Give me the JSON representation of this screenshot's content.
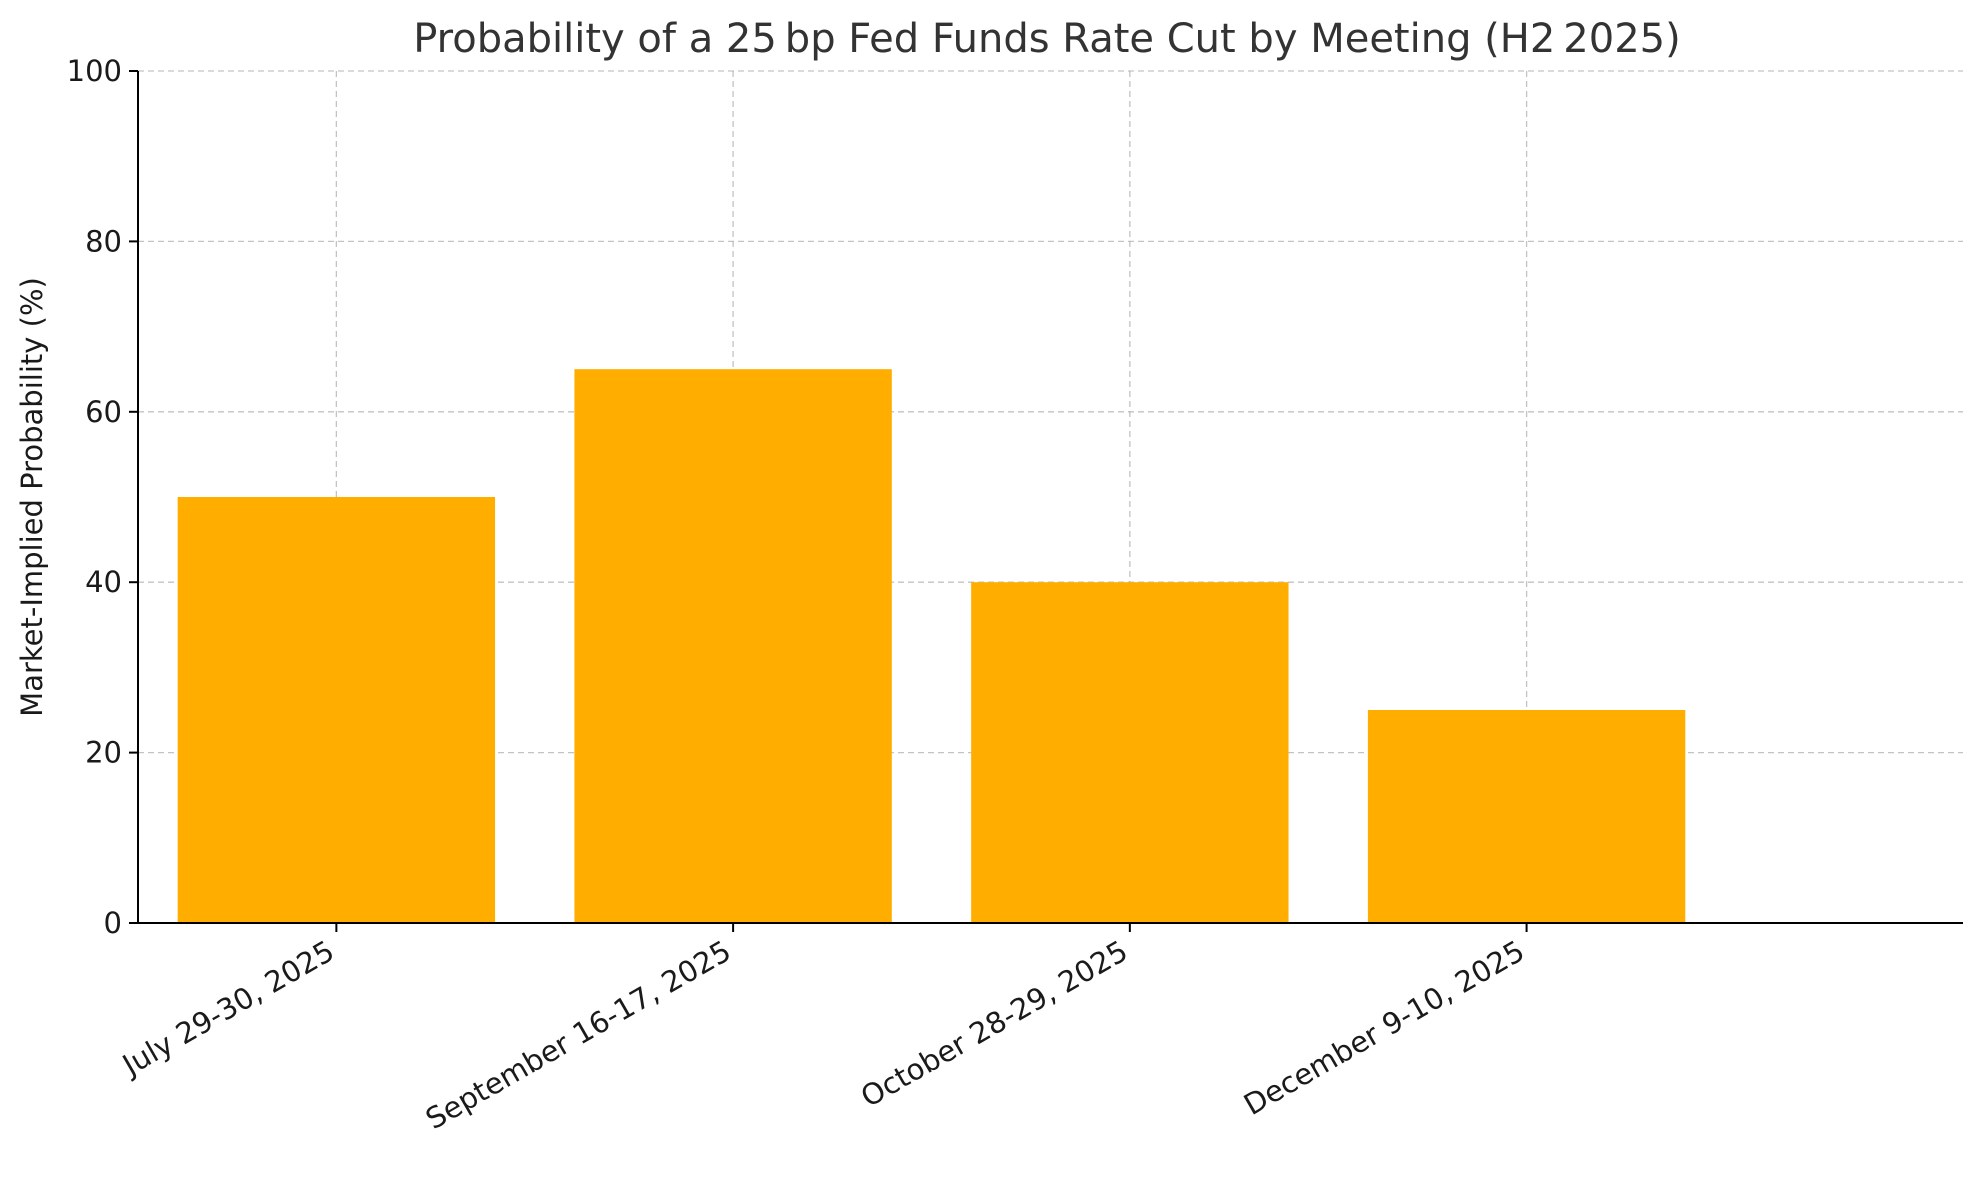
{
  "chart_data": {
    "type": "bar",
    "title": "Probability of a 25 bp Fed Funds Rate Cut by Meeting (H2 2025)",
    "xlabel": "",
    "ylabel": "Market-Implied Probability (%)",
    "categories": [
      "July 29-30, 2025",
      "September 16-17, 2025",
      "October 28-29, 2025",
      "December 9-10, 2025"
    ],
    "values": [
      50,
      65,
      40,
      25
    ],
    "ylim": [
      0,
      100
    ],
    "yticks": [
      0,
      20,
      40,
      60,
      80,
      100
    ],
    "grid": true,
    "bar_color": "#FFAE00"
  }
}
